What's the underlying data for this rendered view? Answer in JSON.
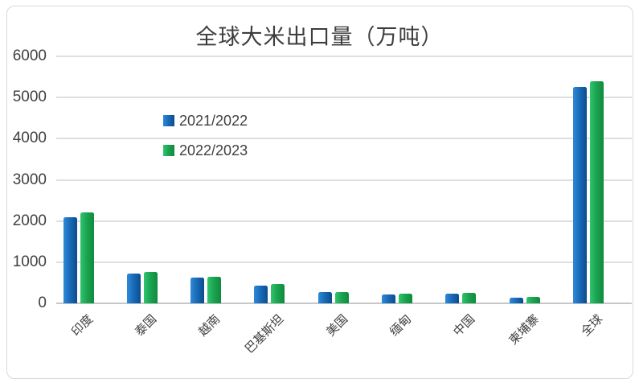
{
  "chart_title": "全球大米出口量（万吨）",
  "legend": {
    "items": [
      {
        "label": "2021/2022",
        "color": "#1266b2"
      },
      {
        "label": "2022/2023",
        "color": "#1ba351"
      }
    ]
  },
  "chart_data": {
    "type": "bar",
    "title": "全球大米出口量（万吨）",
    "categories": [
      "印度",
      "泰国",
      "越南",
      "巴基斯坦",
      "美国",
      "缅甸",
      "中国",
      "柬埔寨",
      "全球"
    ],
    "series": [
      {
        "name": "2021/2022",
        "color": "#1266b2",
        "values": [
          2100,
          720,
          630,
          440,
          280,
          210,
          230,
          130,
          5250
        ]
      },
      {
        "name": "2022/2023",
        "color": "#1ba351",
        "values": [
          2200,
          770,
          650,
          460,
          270,
          240,
          250,
          150,
          5400
        ]
      }
    ],
    "xlabel": "",
    "ylabel": "",
    "ylim": [
      0,
      6000
    ],
    "y_ticks": [
      0,
      1000,
      2000,
      3000,
      4000,
      5000,
      6000
    ],
    "grid": true,
    "legend_position": "inside-left",
    "gridline_color": "#dfdfdf",
    "axis_line_color": "#c7c7c7",
    "text_color": "#404040",
    "border_color": "#d9d9d9"
  }
}
